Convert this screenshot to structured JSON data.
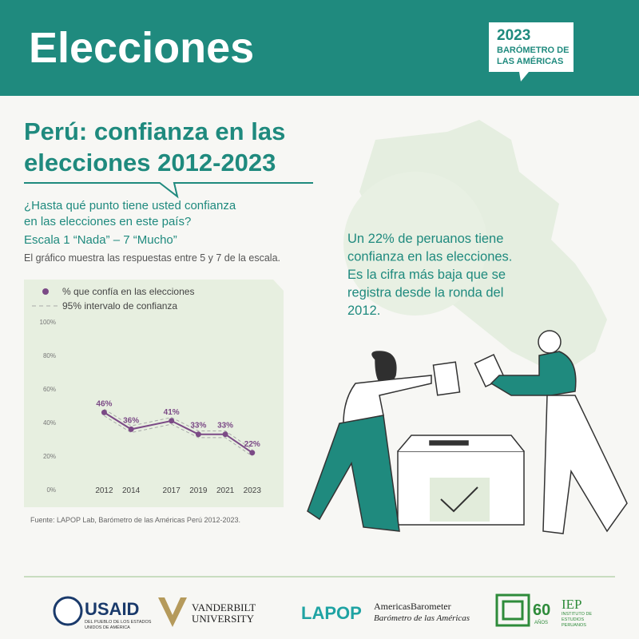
{
  "header": {
    "title": "Elecciones",
    "badge": [
      "2023",
      "BARÓMETRO DE",
      "LAS AMÉRICAS"
    ]
  },
  "heading": [
    "Perú: confianza en las",
    "elecciones 2012-2023"
  ],
  "question": [
    "¿Hasta qué punto tiene usted confianza",
    "en las elecciones en este país?"
  ],
  "scale": "Escala 1 “Nada” – 7 “Mucho”",
  "note": "El gráfico muestra las respuestas entre 5 y 7 de la escala.",
  "highlight": [
    "Un 22% de peruanos tiene",
    "confianza en las elecciones.",
    "Es la cifra más baja que se",
    "registra desde la ronda del",
    "2012."
  ],
  "source": "Fuente: LAPOP Lab, Barómetro de las Américas Perú 2012-2023.",
  "logos": {
    "usaid": "USAID",
    "usaid_sub": [
      "DEL PUEBLO DE LOS ESTADOS",
      "UNIDOS DE AMÉRICA"
    ],
    "vanderbilt": [
      "VANDERBILT",
      "UNIVERSITY"
    ],
    "lapop": "LAPOP",
    "ab": [
      "AmericasBarometer",
      "Barómetro de las Américas"
    ],
    "iep_years": "60",
    "iep_anos": "AÑOS",
    "iep": "IEP",
    "iep_sub": [
      "INSTITUTO DE",
      "ESTUDIOS",
      "PERUANOS"
    ]
  },
  "chart_data": {
    "type": "line",
    "x": [
      2012,
      2014,
      2017,
      2019,
      2021,
      2023
    ],
    "xlim": [
      2009.6,
      2024.2
    ],
    "xticks": [
      2012,
      2014,
      2017,
      2019,
      2021,
      2023
    ],
    "ylim": [
      0,
      100
    ],
    "yticks": [
      {
        "value": 0,
        "label": "0%"
      },
      {
        "value": 20,
        "label": "20%"
      },
      {
        "value": 40,
        "label": "40%"
      },
      {
        "value": 60,
        "label": "60%"
      },
      {
        "value": 80,
        "label": "80%"
      },
      {
        "value": 100,
        "label": "100%"
      }
    ],
    "series": [
      {
        "name": "% que confía en las elecciones",
        "color": "#7b4a86",
        "values": [
          46,
          36,
          41,
          33,
          33,
          22
        ],
        "value_labels": [
          "46%",
          "36%",
          "41%",
          "33%",
          "33%",
          "22%"
        ]
      },
      {
        "name": "95% intervalo de confianza",
        "color": "#a9a9a9",
        "lower": [
          44,
          34,
          39,
          31,
          31,
          20
        ],
        "upper": [
          48,
          38,
          43,
          35,
          35,
          24
        ]
      }
    ]
  }
}
